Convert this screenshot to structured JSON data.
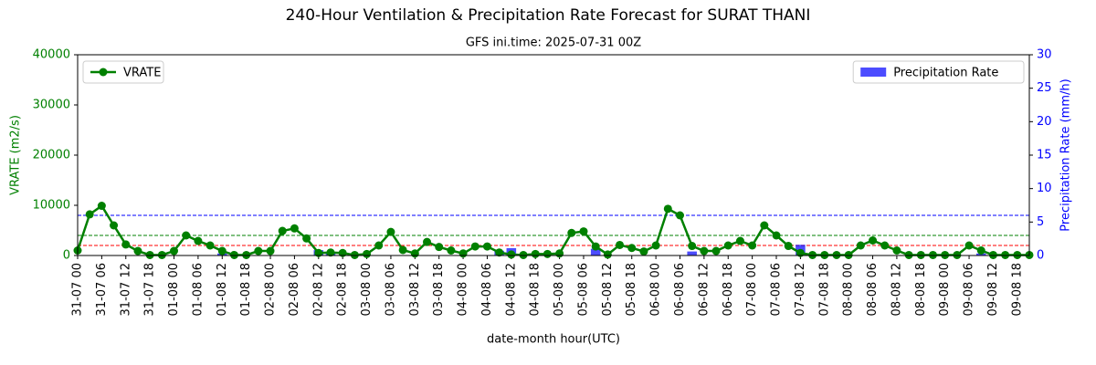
{
  "chart_data": {
    "type": "combo",
    "title": "240-Hour Ventilation & Precipitation Rate Forecast for SURAT THANI",
    "subtitle": "GFS ini.time: 2025-07-31 00Z",
    "xlabel": "date-month hour(UTC)",
    "ylabel": "VRATE (m2/s)",
    "y2label": "Precipitation Rate (mm/h)",
    "categories": [
      "31-07 00",
      null,
      "31-07 06",
      null,
      "31-07 12",
      null,
      "31-07 18",
      null,
      "01-08 00",
      null,
      "01-08 06",
      null,
      "01-08 12",
      null,
      "01-08 18",
      null,
      "02-08 00",
      null,
      "02-08 06",
      null,
      "02-08 12",
      null,
      "02-08 18",
      null,
      "03-08 00",
      null,
      "03-08 06",
      null,
      "03-08 12",
      null,
      "03-08 18",
      null,
      "04-08 00",
      null,
      "04-08 06",
      null,
      "04-08 12",
      null,
      "04-08 18",
      null,
      "05-08 00",
      null,
      "05-08 06",
      null,
      "05-08 12",
      null,
      "05-08 18",
      null,
      "06-08 00",
      null,
      "06-08 06",
      null,
      "06-08 12",
      null,
      "06-08 18",
      null,
      "07-08 00",
      null,
      "07-08 06",
      null,
      "07-08 12",
      null,
      "07-08 18",
      null,
      "08-08 00",
      null,
      "08-08 06",
      null,
      "08-08 12",
      null,
      "08-08 18",
      null,
      "09-08 00",
      null,
      "09-08 06",
      null,
      "09-08 12",
      null,
      "09-08 18",
      null
    ],
    "series": [
      {
        "name": "VRATE",
        "type": "line",
        "axis": "y",
        "color": "#008000",
        "legend": "upper left",
        "values": [
          1000,
          8200,
          9900,
          6000,
          2200,
          900,
          100,
          100,
          900,
          4000,
          2900,
          2000,
          900,
          100,
          100,
          900,
          900,
          4900,
          5400,
          3400,
          500,
          600,
          500,
          100,
          300,
          2000,
          4700,
          1100,
          400,
          2700,
          1700,
          1000,
          400,
          1800,
          1800,
          600,
          200,
          100,
          300,
          300,
          400,
          4500,
          4800,
          1800,
          200,
          2100,
          1500,
          800,
          2000,
          9300,
          8000,
          1900,
          900,
          900,
          2000,
          2900,
          2000,
          6000,
          4000,
          1900,
          500,
          100,
          100,
          100,
          100,
          2000,
          3000,
          2000,
          1000,
          100,
          100,
          100,
          100,
          100,
          2000,
          1000,
          100,
          100,
          100,
          100
        ]
      },
      {
        "name": "Precipitation Rate",
        "type": "bar",
        "axis": "y2",
        "color": "#0000ff",
        "legend": "upper right",
        "values": [
          0,
          0,
          0,
          0,
          0,
          0,
          0,
          0,
          0,
          0,
          0,
          0,
          0.3,
          0,
          0,
          0,
          0,
          0,
          0,
          0,
          0.8,
          0.5,
          0,
          0,
          0,
          0,
          0,
          0,
          0,
          0,
          0,
          0,
          0,
          0,
          0,
          0.7,
          1.1,
          0,
          0,
          0,
          0,
          0,
          0,
          1.0,
          0,
          0,
          0,
          0,
          0,
          0,
          0,
          0.6,
          0,
          0,
          0,
          0,
          0,
          0,
          0,
          0,
          1.6,
          0,
          0,
          0,
          0,
          0,
          0,
          0,
          0,
          0,
          0,
          0,
          0,
          0,
          0,
          0.3,
          0,
          0,
          0,
          0
        ]
      }
    ],
    "ylim": [
      0,
      40000
    ],
    "yticks": [
      0,
      10000,
      20000,
      30000,
      40000
    ],
    "y2lim": [
      0,
      30
    ],
    "y2ticks": [
      0,
      5,
      10,
      15,
      20,
      25,
      30
    ],
    "hlines": [
      {
        "value": 2000,
        "color": "#ff0000"
      },
      {
        "value": 4000,
        "color": "#008000"
      },
      {
        "value": 8000,
        "color": "#0000ff"
      }
    ]
  }
}
